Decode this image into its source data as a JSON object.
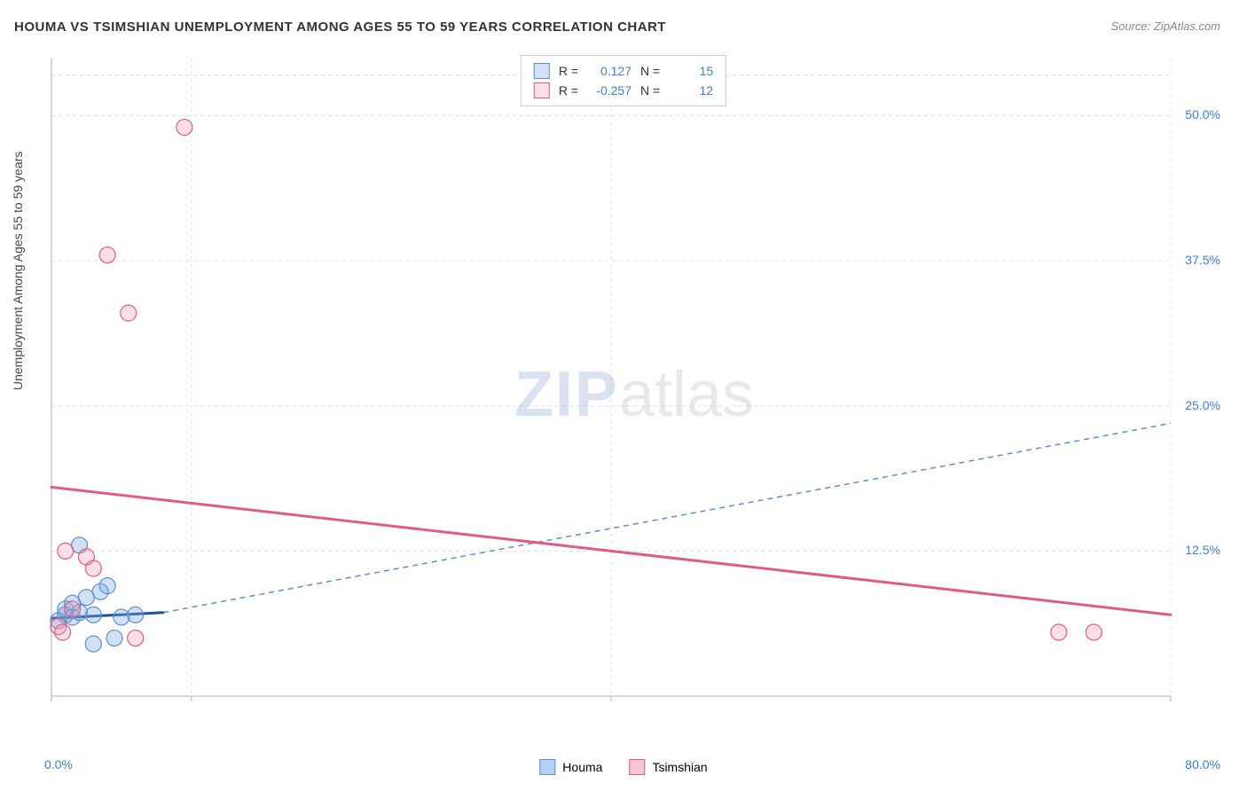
{
  "title": "HOUMA VS TSIMSHIAN UNEMPLOYMENT AMONG AGES 55 TO 59 YEARS CORRELATION CHART",
  "source": "Source: ZipAtlas.com",
  "watermark_zip": "ZIP",
  "watermark_atlas": "atlas",
  "y_axis_label": "Unemployment Among Ages 55 to 59 years",
  "chart": {
    "type": "scatter",
    "xlim": [
      0,
      80
    ],
    "ylim": [
      0,
      55
    ],
    "x_ticks": [
      0,
      10,
      40,
      80
    ],
    "x_tick_labels": {
      "min": "0.0%",
      "max": "80.0%"
    },
    "y_ticks": [
      12.5,
      25.0,
      37.5,
      50.0
    ],
    "y_tick_labels": [
      "12.5%",
      "25.0%",
      "37.5%",
      "50.0%"
    ],
    "grid_color": "#e0e0e0",
    "background_color": "#ffffff",
    "axis_color": "#cccccc",
    "series": [
      {
        "name": "Houma",
        "color_fill": "rgba(120,170,230,0.35)",
        "color_stroke": "#5b8fd0",
        "r_value": "0.127",
        "n_value": "15",
        "marker_radius": 9,
        "points": [
          [
            0.5,
            6.5
          ],
          [
            1.0,
            7.0
          ],
          [
            1.5,
            6.8
          ],
          [
            2.0,
            7.2
          ],
          [
            2.5,
            8.5
          ],
          [
            3.0,
            7.0
          ],
          [
            3.5,
            9.0
          ],
          [
            4.0,
            9.5
          ],
          [
            2.0,
            13.0
          ],
          [
            1.0,
            7.5
          ],
          [
            5.0,
            6.8
          ],
          [
            3.0,
            4.5
          ],
          [
            4.5,
            5.0
          ],
          [
            6.0,
            7.0
          ],
          [
            1.5,
            8.0
          ]
        ],
        "trend_solid": {
          "x1": 0,
          "y1": 6.7,
          "x2": 8,
          "y2": 7.2,
          "color": "#1e4f9e",
          "width": 3
        },
        "trend_dash": {
          "x1": 8,
          "y1": 7.2,
          "x2": 80,
          "y2": 23.5,
          "color": "#5b8fd0",
          "width": 1.5
        }
      },
      {
        "name": "Tsimshian",
        "color_fill": "rgba(240,150,175,0.30)",
        "color_stroke": "#e05b85",
        "r_value": "-0.257",
        "n_value": "12",
        "marker_radius": 9,
        "points": [
          [
            0.5,
            6.0
          ],
          [
            1.0,
            12.5
          ],
          [
            2.5,
            12.0
          ],
          [
            1.5,
            7.5
          ],
          [
            3.0,
            11.0
          ],
          [
            0.8,
            5.5
          ],
          [
            6.0,
            5.0
          ],
          [
            4.0,
            38.0
          ],
          [
            5.5,
            33.0
          ],
          [
            9.5,
            49.0
          ],
          [
            72.0,
            5.5
          ],
          [
            74.5,
            5.5
          ]
        ],
        "trend_solid": {
          "x1": 0,
          "y1": 18.0,
          "x2": 80,
          "y2": 7.0,
          "color": "#e05b85",
          "width": 3
        }
      }
    ],
    "legend_top": {
      "r_label": "R =",
      "n_label": "N ="
    },
    "legend_bottom": [
      {
        "label": "Houma",
        "fill": "rgba(120,170,230,0.55)",
        "stroke": "#5b8fd0"
      },
      {
        "label": "Tsimshian",
        "fill": "rgba(240,150,175,0.55)",
        "stroke": "#e05b85"
      }
    ]
  }
}
